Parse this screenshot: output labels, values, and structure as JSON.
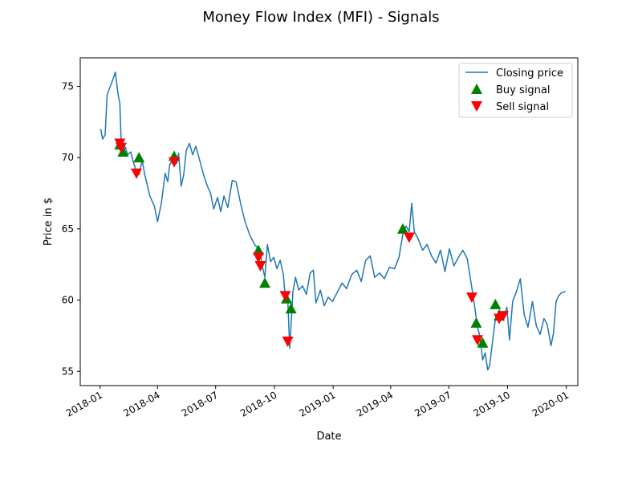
{
  "chart_data": {
    "type": "line",
    "title": "Money Flow Index (MFI) - Signals",
    "xlabel": "Date",
    "ylabel": "Price in $",
    "xlim": [
      "2017-12-01",
      "2020-01-19"
    ],
    "ylim": [
      54.0,
      77.0
    ],
    "x_ticks": [
      {
        "date": "2018-01-01",
        "label": "2018-01"
      },
      {
        "date": "2018-04-01",
        "label": "2018-04"
      },
      {
        "date": "2018-07-01",
        "label": "2018-07"
      },
      {
        "date": "2018-10-01",
        "label": "2018-10"
      },
      {
        "date": "2019-01-01",
        "label": "2019-01"
      },
      {
        "date": "2019-04-01",
        "label": "2019-04"
      },
      {
        "date": "2019-07-01",
        "label": "2019-07"
      },
      {
        "date": "2019-10-01",
        "label": "2019-10"
      },
      {
        "date": "2020-01-01",
        "label": "2020-01"
      }
    ],
    "y_ticks": [
      55,
      60,
      65,
      70,
      75
    ],
    "grid": false,
    "legend_position": "top-right",
    "series": [
      {
        "name": "Closing price",
        "kind": "line",
        "color": "#1f77b4",
        "points": [
          [
            "2018-01-02",
            72.0
          ],
          [
            "2018-01-05",
            71.3
          ],
          [
            "2018-01-09",
            71.6
          ],
          [
            "2018-01-12",
            74.4
          ],
          [
            "2018-01-17",
            75.0
          ],
          [
            "2018-01-22",
            75.6
          ],
          [
            "2018-01-25",
            76.0
          ],
          [
            "2018-01-29",
            74.5
          ],
          [
            "2018-02-01",
            73.8
          ],
          [
            "2018-02-03",
            71.2
          ],
          [
            "2018-02-06",
            70.9
          ],
          [
            "2018-02-10",
            70.7
          ],
          [
            "2018-02-13",
            70.2
          ],
          [
            "2018-02-18",
            70.4
          ],
          [
            "2018-02-22",
            69.7
          ],
          [
            "2018-02-27",
            69.0
          ],
          [
            "2018-03-03",
            68.8
          ],
          [
            "2018-03-08",
            69.8
          ],
          [
            "2018-03-12",
            68.8
          ],
          [
            "2018-03-20",
            67.3
          ],
          [
            "2018-03-27",
            66.6
          ],
          [
            "2018-04-01",
            65.5
          ],
          [
            "2018-04-07",
            66.8
          ],
          [
            "2018-04-13",
            68.9
          ],
          [
            "2018-04-17",
            68.3
          ],
          [
            "2018-04-20",
            69.5
          ],
          [
            "2018-04-27",
            70.0
          ],
          [
            "2018-05-01",
            69.6
          ],
          [
            "2018-05-04",
            70.3
          ],
          [
            "2018-05-08",
            68.0
          ],
          [
            "2018-05-12",
            68.8
          ],
          [
            "2018-05-16",
            70.5
          ],
          [
            "2018-05-21",
            71.0
          ],
          [
            "2018-05-26",
            70.2
          ],
          [
            "2018-05-31",
            70.8
          ],
          [
            "2018-06-06",
            69.8
          ],
          [
            "2018-06-12",
            68.8
          ],
          [
            "2018-06-18",
            68.0
          ],
          [
            "2018-06-23",
            67.5
          ],
          [
            "2018-06-28",
            66.4
          ],
          [
            "2018-07-04",
            67.2
          ],
          [
            "2018-07-09",
            66.2
          ],
          [
            "2018-07-14",
            67.3
          ],
          [
            "2018-07-20",
            66.5
          ],
          [
            "2018-07-27",
            68.4
          ],
          [
            "2018-08-02",
            68.3
          ],
          [
            "2018-08-09",
            66.8
          ],
          [
            "2018-08-16",
            65.5
          ],
          [
            "2018-08-24",
            64.5
          ],
          [
            "2018-08-31",
            63.9
          ],
          [
            "2018-09-06",
            63.6
          ],
          [
            "2018-09-09",
            63.3
          ],
          [
            "2018-09-12",
            62.4
          ],
          [
            "2018-09-16",
            61.6
          ],
          [
            "2018-09-20",
            63.9
          ],
          [
            "2018-09-25",
            62.7
          ],
          [
            "2018-09-30",
            63.0
          ],
          [
            "2018-10-05",
            62.2
          ],
          [
            "2018-10-10",
            62.8
          ],
          [
            "2018-10-15",
            61.8
          ],
          [
            "2018-10-18",
            60.2
          ],
          [
            "2018-10-22",
            59.9
          ],
          [
            "2018-10-25",
            56.6
          ],
          [
            "2018-10-27",
            58.2
          ],
          [
            "2018-10-30",
            60.6
          ],
          [
            "2018-11-03",
            61.6
          ],
          [
            "2018-11-08",
            60.7
          ],
          [
            "2018-11-14",
            61.0
          ],
          [
            "2018-11-20",
            60.4
          ],
          [
            "2018-11-26",
            61.9
          ],
          [
            "2018-12-01",
            62.1
          ],
          [
            "2018-12-05",
            59.8
          ],
          [
            "2018-12-12",
            60.7
          ],
          [
            "2018-12-18",
            59.6
          ],
          [
            "2018-12-24",
            60.2
          ],
          [
            "2018-12-31",
            59.9
          ],
          [
            "2019-01-08",
            60.6
          ],
          [
            "2019-01-15",
            61.2
          ],
          [
            "2019-01-22",
            60.8
          ],
          [
            "2019-01-30",
            61.8
          ],
          [
            "2019-02-07",
            62.1
          ],
          [
            "2019-02-14",
            61.3
          ],
          [
            "2019-02-21",
            62.8
          ],
          [
            "2019-02-28",
            63.1
          ],
          [
            "2019-03-07",
            61.6
          ],
          [
            "2019-03-15",
            61.9
          ],
          [
            "2019-03-22",
            61.5
          ],
          [
            "2019-03-30",
            62.3
          ],
          [
            "2019-04-07",
            62.2
          ],
          [
            "2019-04-14",
            63.0
          ],
          [
            "2019-04-20",
            64.6
          ],
          [
            "2019-04-25",
            65.2
          ],
          [
            "2019-04-30",
            64.8
          ],
          [
            "2019-05-04",
            66.8
          ],
          [
            "2019-05-08",
            64.8
          ],
          [
            "2019-05-14",
            64.3
          ],
          [
            "2019-05-21",
            63.5
          ],
          [
            "2019-05-28",
            63.9
          ],
          [
            "2019-06-04",
            63.1
          ],
          [
            "2019-06-11",
            62.6
          ],
          [
            "2019-06-18",
            63.5
          ],
          [
            "2019-06-25",
            62.0
          ],
          [
            "2019-07-02",
            63.6
          ],
          [
            "2019-07-09",
            62.4
          ],
          [
            "2019-07-16",
            63.0
          ],
          [
            "2019-07-23",
            63.5
          ],
          [
            "2019-07-30",
            62.9
          ],
          [
            "2019-08-06",
            60.9
          ],
          [
            "2019-08-11",
            59.4
          ],
          [
            "2019-08-15",
            58.1
          ],
          [
            "2019-08-19",
            57.4
          ],
          [
            "2019-08-23",
            55.8
          ],
          [
            "2019-08-27",
            56.3
          ],
          [
            "2019-08-31",
            55.1
          ],
          [
            "2019-09-03",
            55.4
          ],
          [
            "2019-09-07",
            56.9
          ],
          [
            "2019-09-12",
            58.7
          ],
          [
            "2019-09-18",
            59.3
          ],
          [
            "2019-09-24",
            58.6
          ],
          [
            "2019-09-30",
            59.5
          ],
          [
            "2019-10-04",
            57.2
          ],
          [
            "2019-10-09",
            59.9
          ],
          [
            "2019-10-15",
            60.6
          ],
          [
            "2019-10-21",
            61.5
          ],
          [
            "2019-10-27",
            59.0
          ],
          [
            "2019-11-02",
            58.1
          ],
          [
            "2019-11-09",
            59.9
          ],
          [
            "2019-11-15",
            58.2
          ],
          [
            "2019-11-21",
            57.6
          ],
          [
            "2019-11-27",
            58.7
          ],
          [
            "2019-12-02",
            58.3
          ],
          [
            "2019-12-08",
            56.8
          ],
          [
            "2019-12-12",
            57.7
          ],
          [
            "2019-12-16",
            59.9
          ],
          [
            "2019-12-20",
            60.3
          ],
          [
            "2019-12-24",
            60.5
          ],
          [
            "2019-12-31",
            60.6
          ]
        ]
      },
      {
        "name": "Buy signal",
        "kind": "marker",
        "marker": "triangle-up",
        "color": "#008000",
        "points": [
          [
            "2018-02-01",
            70.9
          ],
          [
            "2018-02-06",
            70.4
          ],
          [
            "2018-03-03",
            70.0
          ],
          [
            "2018-04-27",
            70.1
          ],
          [
            "2018-09-06",
            63.5
          ],
          [
            "2018-09-16",
            61.2
          ],
          [
            "2018-10-20",
            60.1
          ],
          [
            "2018-10-27",
            59.4
          ],
          [
            "2019-04-20",
            65.0
          ],
          [
            "2019-08-13",
            58.4
          ],
          [
            "2019-08-23",
            57.0
          ],
          [
            "2019-09-12",
            59.7
          ],
          [
            "2019-09-18",
            58.9
          ]
        ]
      },
      {
        "name": "Sell signal",
        "kind": "marker",
        "marker": "triangle-down",
        "color": "#ff0000",
        "points": [
          [
            "2018-02-01",
            71.0
          ],
          [
            "2018-02-03",
            70.7
          ],
          [
            "2018-02-27",
            68.9
          ],
          [
            "2018-04-27",
            69.7
          ],
          [
            "2018-09-06",
            63.0
          ],
          [
            "2018-09-09",
            62.4
          ],
          [
            "2018-10-18",
            60.3
          ],
          [
            "2018-10-22",
            57.1
          ],
          [
            "2019-04-30",
            64.4
          ],
          [
            "2019-08-06",
            60.2
          ],
          [
            "2019-08-15",
            57.2
          ],
          [
            "2019-09-18",
            58.7
          ],
          [
            "2019-09-24",
            58.9
          ]
        ]
      }
    ]
  }
}
